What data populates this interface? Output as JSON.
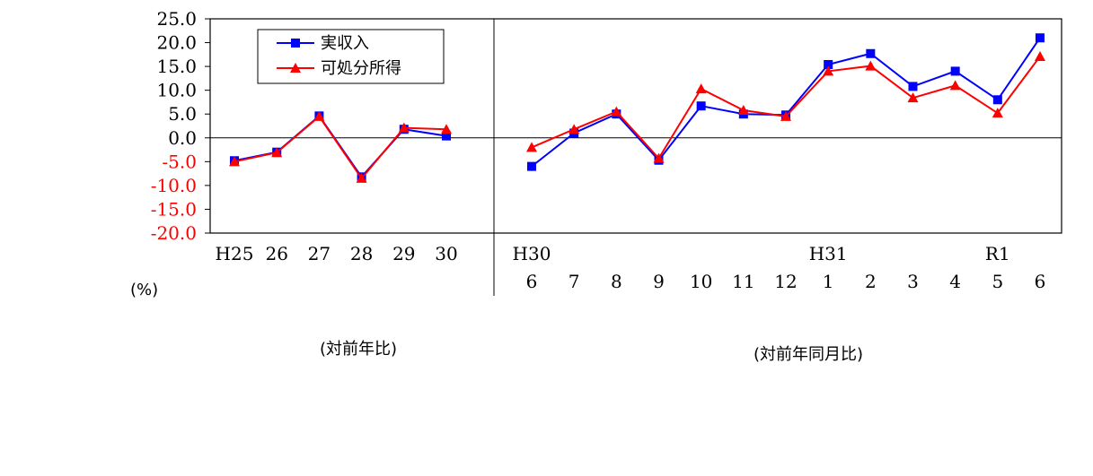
{
  "chart_data": {
    "type": "line",
    "ylim": [
      -20,
      25
    ],
    "y_ticks": [
      "25.0",
      "20.0",
      "15.0",
      "10.0",
      "5.0",
      "0.0",
      "-5.0",
      "-10.0",
      "-15.0",
      "-20.0"
    ],
    "y_unit": "(%)",
    "grid": false,
    "legend_position": "top-left",
    "colors": {
      "income": "#0000ff",
      "disposable": "#ff0000",
      "negative_tick": "#ff0000",
      "positive_tick": "#000000"
    },
    "series": [
      {
        "name": "実収入",
        "color": "#0000ff",
        "marker": "square"
      },
      {
        "name": "可処分所得",
        "color": "#ff0000",
        "marker": "triangle"
      }
    ],
    "panels": [
      {
        "caption": "(対前年比)",
        "categories": [
          "H25",
          "26",
          "27",
          "28",
          "29",
          "30"
        ],
        "category_sublabels": [],
        "values": {
          "実収入": [
            -4.8,
            -3.0,
            4.6,
            -8.2,
            1.8,
            0.4
          ],
          "可処分所得": [
            -5.0,
            -3.1,
            4.5,
            -8.5,
            2.1,
            1.8
          ]
        }
      },
      {
        "caption": "(対前年同月比)",
        "categories": [
          "6",
          "7",
          "8",
          "9",
          "10",
          "11",
          "12",
          "1",
          "2",
          "3",
          "4",
          "5",
          "6"
        ],
        "category_sublabels": [
          "H30",
          "",
          "",
          "",
          "",
          "",
          "",
          "H31",
          "",
          "",
          "",
          "R1",
          ""
        ],
        "values": {
          "実収入": [
            -6.0,
            1.0,
            5.0,
            -4.7,
            6.7,
            5.0,
            4.8,
            15.4,
            17.7,
            10.8,
            14.0,
            8.0,
            21.0
          ],
          "可処分所得": [
            -2.0,
            1.8,
            5.5,
            -4.3,
            10.3,
            5.8,
            4.5,
            14.0,
            15.1,
            8.4,
            11.0,
            5.2,
            17.1
          ]
        }
      }
    ]
  }
}
